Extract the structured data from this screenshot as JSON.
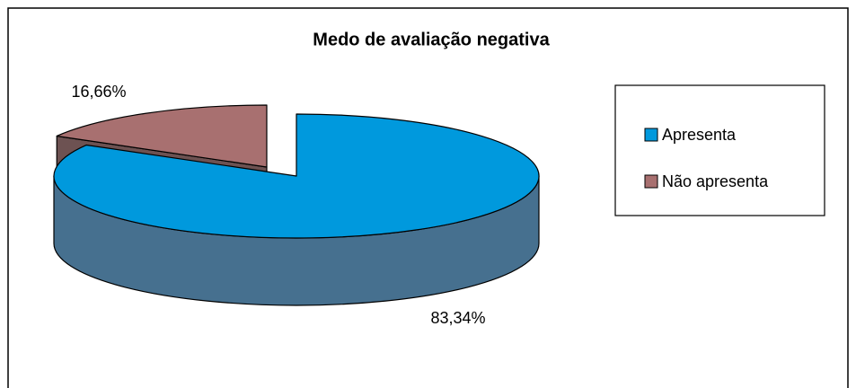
{
  "chart_data": {
    "type": "pie",
    "title": "Medo de avaliação negativa",
    "categories": [
      "Apresenta",
      "Não apresenta"
    ],
    "values": [
      83.34,
      16.66
    ],
    "value_labels": [
      "83,34%",
      "16,66%"
    ],
    "colors": [
      "#0099dd",
      "#a87070"
    ],
    "side_colors": [
      "#46708f",
      "#6d5252"
    ],
    "legend": "right"
  }
}
